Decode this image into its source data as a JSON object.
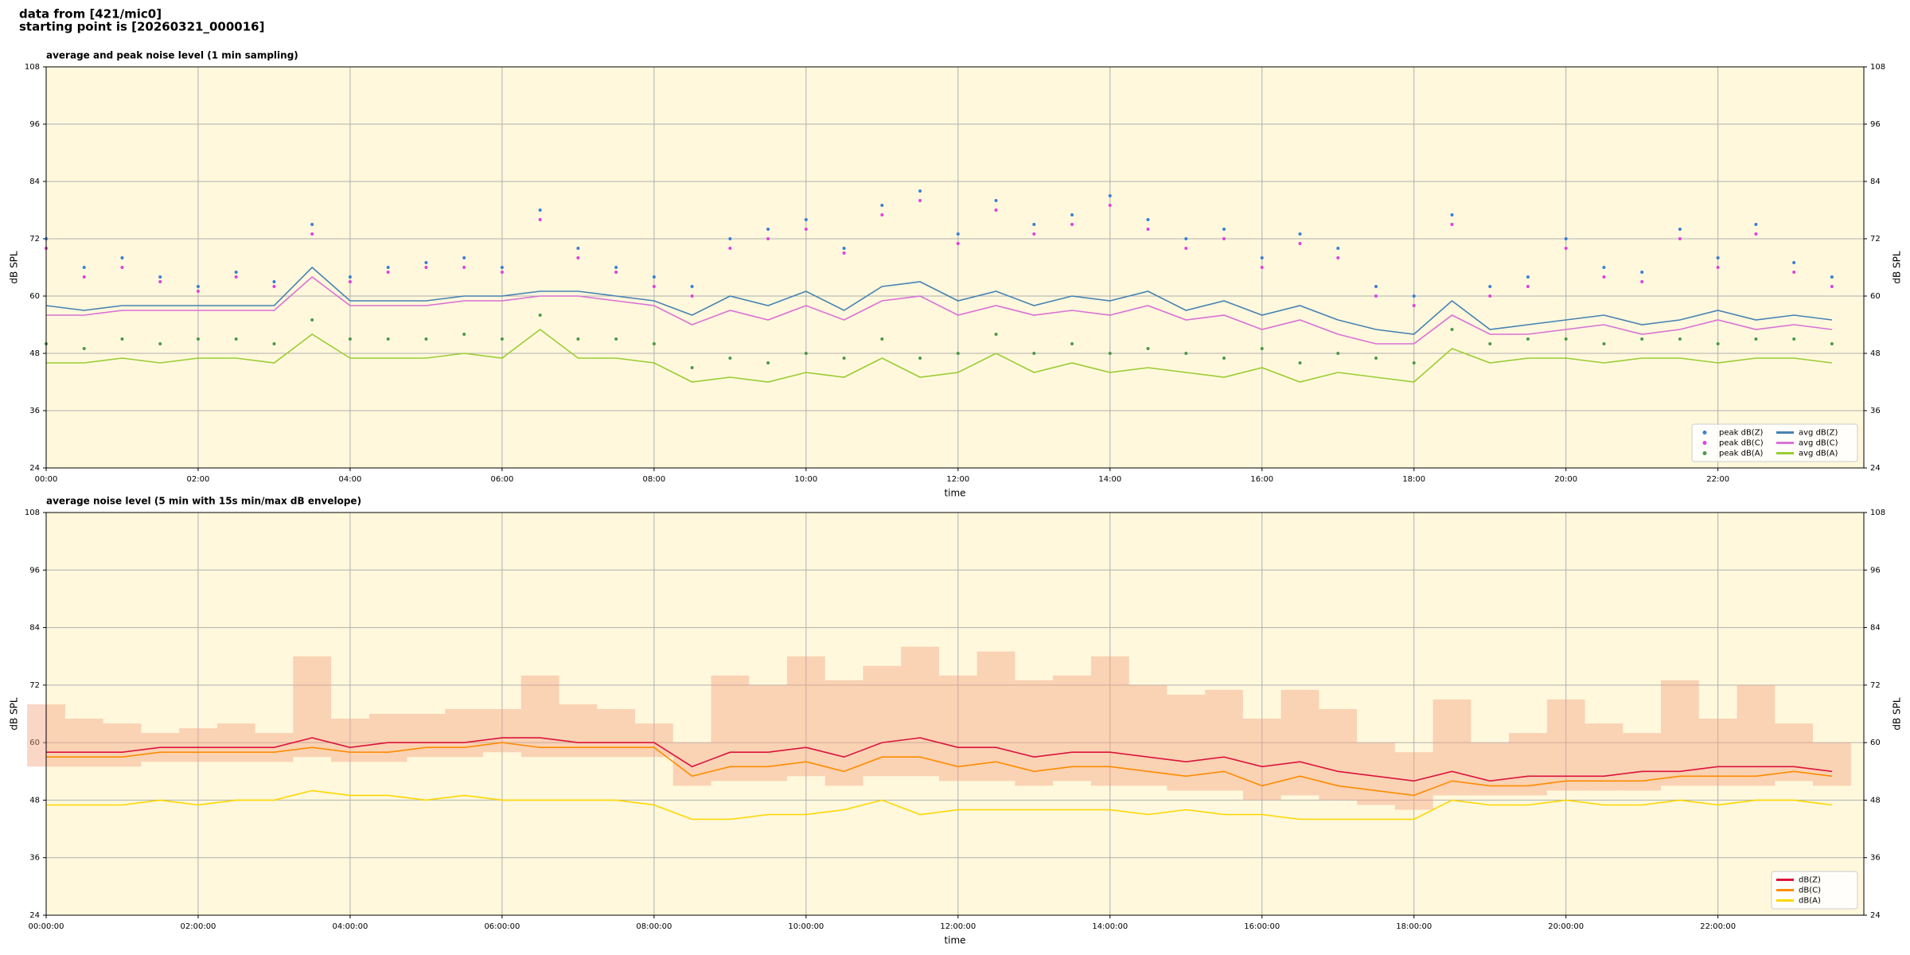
{
  "page": {
    "source": "data from [421/mic0]",
    "start": "starting point is [20260321_000016]"
  },
  "chart_data": [
    {
      "type": "line",
      "title": "average and peak noise level (1 min sampling)",
      "xlabel": "time",
      "ylabel": "dB SPL",
      "xlim": [
        0,
        23.92
      ],
      "ylim": [
        24,
        108
      ],
      "yticks": [
        24,
        36,
        48,
        60,
        72,
        84,
        96,
        108
      ],
      "xticks": [
        {
          "value": 0,
          "label": "00:00"
        },
        {
          "value": 2,
          "label": "02:00"
        },
        {
          "value": 4,
          "label": "04:00"
        },
        {
          "value": 6,
          "label": "06:00"
        },
        {
          "value": 8,
          "label": "08:00"
        },
        {
          "value": 10,
          "label": "10:00"
        },
        {
          "value": 12,
          "label": "12:00"
        },
        {
          "value": 14,
          "label": "14:00"
        },
        {
          "value": 16,
          "label": "16:00"
        },
        {
          "value": 18,
          "label": "18:00"
        },
        {
          "value": 20,
          "label": "20:00"
        },
        {
          "value": 22,
          "label": "22:00"
        }
      ],
      "grid": true,
      "legend": "lower right",
      "legend_columns": 2,
      "background": "#fff8dc",
      "x": [
        0,
        0.5,
        1,
        1.5,
        2,
        2.5,
        3,
        3.5,
        4,
        4.5,
        5,
        5.5,
        6,
        6.5,
        7,
        7.5,
        8,
        8.5,
        9,
        9.5,
        10,
        10.5,
        11,
        11.5,
        12,
        12.5,
        13,
        13.5,
        14,
        14.5,
        15,
        15.5,
        16,
        16.5,
        17,
        17.5,
        18,
        18.5,
        19,
        19.5,
        20,
        20.5,
        21,
        21.5,
        22,
        22.5,
        23,
        23.5
      ],
      "series": [
        {
          "name": "peak dB(Z)",
          "marker": "dot",
          "color": "#3a7fd5",
          "values": [
            72,
            66,
            68,
            64,
            62,
            65,
            63,
            75,
            64,
            66,
            67,
            68,
            66,
            78,
            70,
            66,
            64,
            62,
            72,
            74,
            76,
            70,
            79,
            82,
            73,
            80,
            75,
            77,
            81,
            76,
            72,
            74,
            68,
            73,
            70,
            62,
            60,
            77,
            62,
            64,
            72,
            66,
            65,
            74,
            68,
            75,
            67,
            64
          ]
        },
        {
          "name": "peak dB(C)",
          "marker": "dot",
          "color": "#e040e0",
          "values": [
            70,
            64,
            66,
            63,
            61,
            64,
            62,
            73,
            63,
            65,
            66,
            66,
            65,
            76,
            68,
            65,
            62,
            60,
            70,
            72,
            74,
            69,
            77,
            80,
            71,
            78,
            73,
            75,
            79,
            74,
            70,
            72,
            66,
            71,
            68,
            60,
            58,
            75,
            60,
            62,
            70,
            64,
            63,
            72,
            66,
            73,
            65,
            62
          ]
        },
        {
          "name": "peak dB(A)",
          "marker": "dot",
          "color": "#4a9a4a",
          "values": [
            50,
            49,
            51,
            50,
            51,
            51,
            50,
            55,
            51,
            51,
            51,
            52,
            51,
            56,
            51,
            51,
            50,
            45,
            47,
            46,
            48,
            47,
            51,
            47,
            48,
            52,
            48,
            50,
            48,
            49,
            48,
            47,
            49,
            46,
            48,
            47,
            46,
            53,
            50,
            51,
            51,
            50,
            51,
            51,
            50,
            51,
            51,
            50
          ]
        },
        {
          "name": "avg dB(Z)",
          "marker": "line",
          "color": "#4682b4",
          "values": [
            58,
            57,
            58,
            58,
            58,
            58,
            58,
            66,
            59,
            59,
            59,
            60,
            60,
            61,
            61,
            60,
            59,
            56,
            60,
            58,
            61,
            57,
            62,
            63,
            59,
            61,
            58,
            60,
            59,
            61,
            57,
            59,
            56,
            58,
            55,
            53,
            52,
            59,
            53,
            54,
            55,
            56,
            54,
            55,
            57,
            55,
            56,
            55
          ]
        },
        {
          "name": "avg dB(C)",
          "marker": "line",
          "color": "#da70d6",
          "values": [
            56,
            56,
            57,
            57,
            57,
            57,
            57,
            64,
            58,
            58,
            58,
            59,
            59,
            60,
            60,
            59,
            58,
            54,
            57,
            55,
            58,
            55,
            59,
            60,
            56,
            58,
            56,
            57,
            56,
            58,
            55,
            56,
            53,
            55,
            52,
            50,
            50,
            56,
            52,
            52,
            53,
            54,
            52,
            53,
            55,
            53,
            54,
            53
          ]
        },
        {
          "name": "avg dB(A)",
          "marker": "line",
          "color": "#9acd32",
          "values": [
            46,
            46,
            47,
            46,
            47,
            47,
            46,
            52,
            47,
            47,
            47,
            48,
            47,
            53,
            47,
            47,
            46,
            42,
            43,
            42,
            44,
            43,
            47,
            43,
            44,
            48,
            44,
            46,
            44,
            45,
            44,
            43,
            45,
            42,
            44,
            43,
            42,
            49,
            46,
            47,
            47,
            46,
            47,
            47,
            46,
            47,
            47,
            46
          ]
        }
      ]
    },
    {
      "type": "line",
      "title": "average noise level (5 min with 15s min/max dB envelope)",
      "xlabel": "time",
      "ylabel": "dB SPL",
      "xlim": [
        0,
        23.92
      ],
      "ylim": [
        24,
        108
      ],
      "yticks": [
        24,
        36,
        48,
        60,
        72,
        84,
        96,
        108
      ],
      "xticks": [
        {
          "value": 0,
          "label": "00:00:00"
        },
        {
          "value": 2,
          "label": "02:00:00"
        },
        {
          "value": 4,
          "label": "04:00:00"
        },
        {
          "value": 6,
          "label": "06:00:00"
        },
        {
          "value": 8,
          "label": "08:00:00"
        },
        {
          "value": 10,
          "label": "10:00:00"
        },
        {
          "value": 12,
          "label": "12:00:00"
        },
        {
          "value": 14,
          "label": "14:00:00"
        },
        {
          "value": 16,
          "label": "16:00:00"
        },
        {
          "value": 18,
          "label": "18:00:00"
        },
        {
          "value": 20,
          "label": "20:00:00"
        },
        {
          "value": 22,
          "label": "22:00:00"
        }
      ],
      "grid": true,
      "legend": "lower right",
      "legend_columns": 1,
      "background": "#fff8dc",
      "x": [
        0,
        0.5,
        1,
        1.5,
        2,
        2.5,
        3,
        3.5,
        4,
        4.5,
        5,
        5.5,
        6,
        6.5,
        7,
        7.5,
        8,
        8.5,
        9,
        9.5,
        10,
        10.5,
        11,
        11.5,
        12,
        12.5,
        13,
        13.5,
        14,
        14.5,
        15,
        15.5,
        16,
        16.5,
        17,
        17.5,
        18,
        18.5,
        19,
        19.5,
        20,
        20.5,
        21,
        21.5,
        22,
        22.5,
        23,
        23.5
      ],
      "band": {
        "color": "#f4a582",
        "lower": [
          55,
          55,
          55,
          56,
          56,
          56,
          56,
          57,
          56,
          56,
          57,
          57,
          58,
          57,
          57,
          57,
          57,
          51,
          52,
          52,
          53,
          51,
          53,
          53,
          52,
          52,
          51,
          52,
          51,
          51,
          50,
          50,
          48,
          49,
          48,
          47,
          46,
          49,
          49,
          49,
          50,
          50,
          50,
          51,
          51,
          51,
          52,
          51
        ],
        "upper": [
          68,
          65,
          64,
          62,
          63,
          64,
          62,
          78,
          65,
          66,
          66,
          67,
          67,
          74,
          68,
          67,
          64,
          60,
          74,
          72,
          78,
          73,
          76,
          80,
          74,
          79,
          73,
          74,
          78,
          72,
          70,
          71,
          65,
          71,
          67,
          60,
          58,
          69,
          60,
          62,
          69,
          64,
          62,
          73,
          65,
          72,
          64,
          60
        ]
      },
      "series": [
        {
          "name": "dB(Z)",
          "marker": "line",
          "color": "#dc143c",
          "values": [
            58,
            58,
            58,
            59,
            59,
            59,
            59,
            61,
            59,
            60,
            60,
            60,
            61,
            61,
            60,
            60,
            60,
            55,
            58,
            58,
            59,
            57,
            60,
            61,
            59,
            59,
            57,
            58,
            58,
            57,
            56,
            57,
            55,
            56,
            54,
            53,
            52,
            54,
            52,
            53,
            53,
            53,
            54,
            54,
            55,
            55,
            55,
            54
          ]
        },
        {
          "name": "dB(C)",
          "marker": "line",
          "color": "#ff8c00",
          "values": [
            57,
            57,
            57,
            58,
            58,
            58,
            58,
            59,
            58,
            58,
            59,
            59,
            60,
            59,
            59,
            59,
            59,
            53,
            55,
            55,
            56,
            54,
            57,
            57,
            55,
            56,
            54,
            55,
            55,
            54,
            53,
            54,
            51,
            53,
            51,
            50,
            49,
            52,
            51,
            51,
            52,
            52,
            52,
            53,
            53,
            53,
            54,
            53
          ]
        },
        {
          "name": "dB(A)",
          "marker": "line",
          "color": "#ffd700",
          "values": [
            47,
            47,
            47,
            48,
            47,
            48,
            48,
            50,
            49,
            49,
            48,
            49,
            48,
            48,
            48,
            48,
            47,
            44,
            44,
            45,
            45,
            46,
            48,
            45,
            46,
            46,
            46,
            46,
            46,
            45,
            46,
            45,
            45,
            44,
            44,
            44,
            44,
            48,
            47,
            47,
            48,
            47,
            47,
            48,
            47,
            48,
            48,
            47
          ]
        }
      ]
    }
  ]
}
